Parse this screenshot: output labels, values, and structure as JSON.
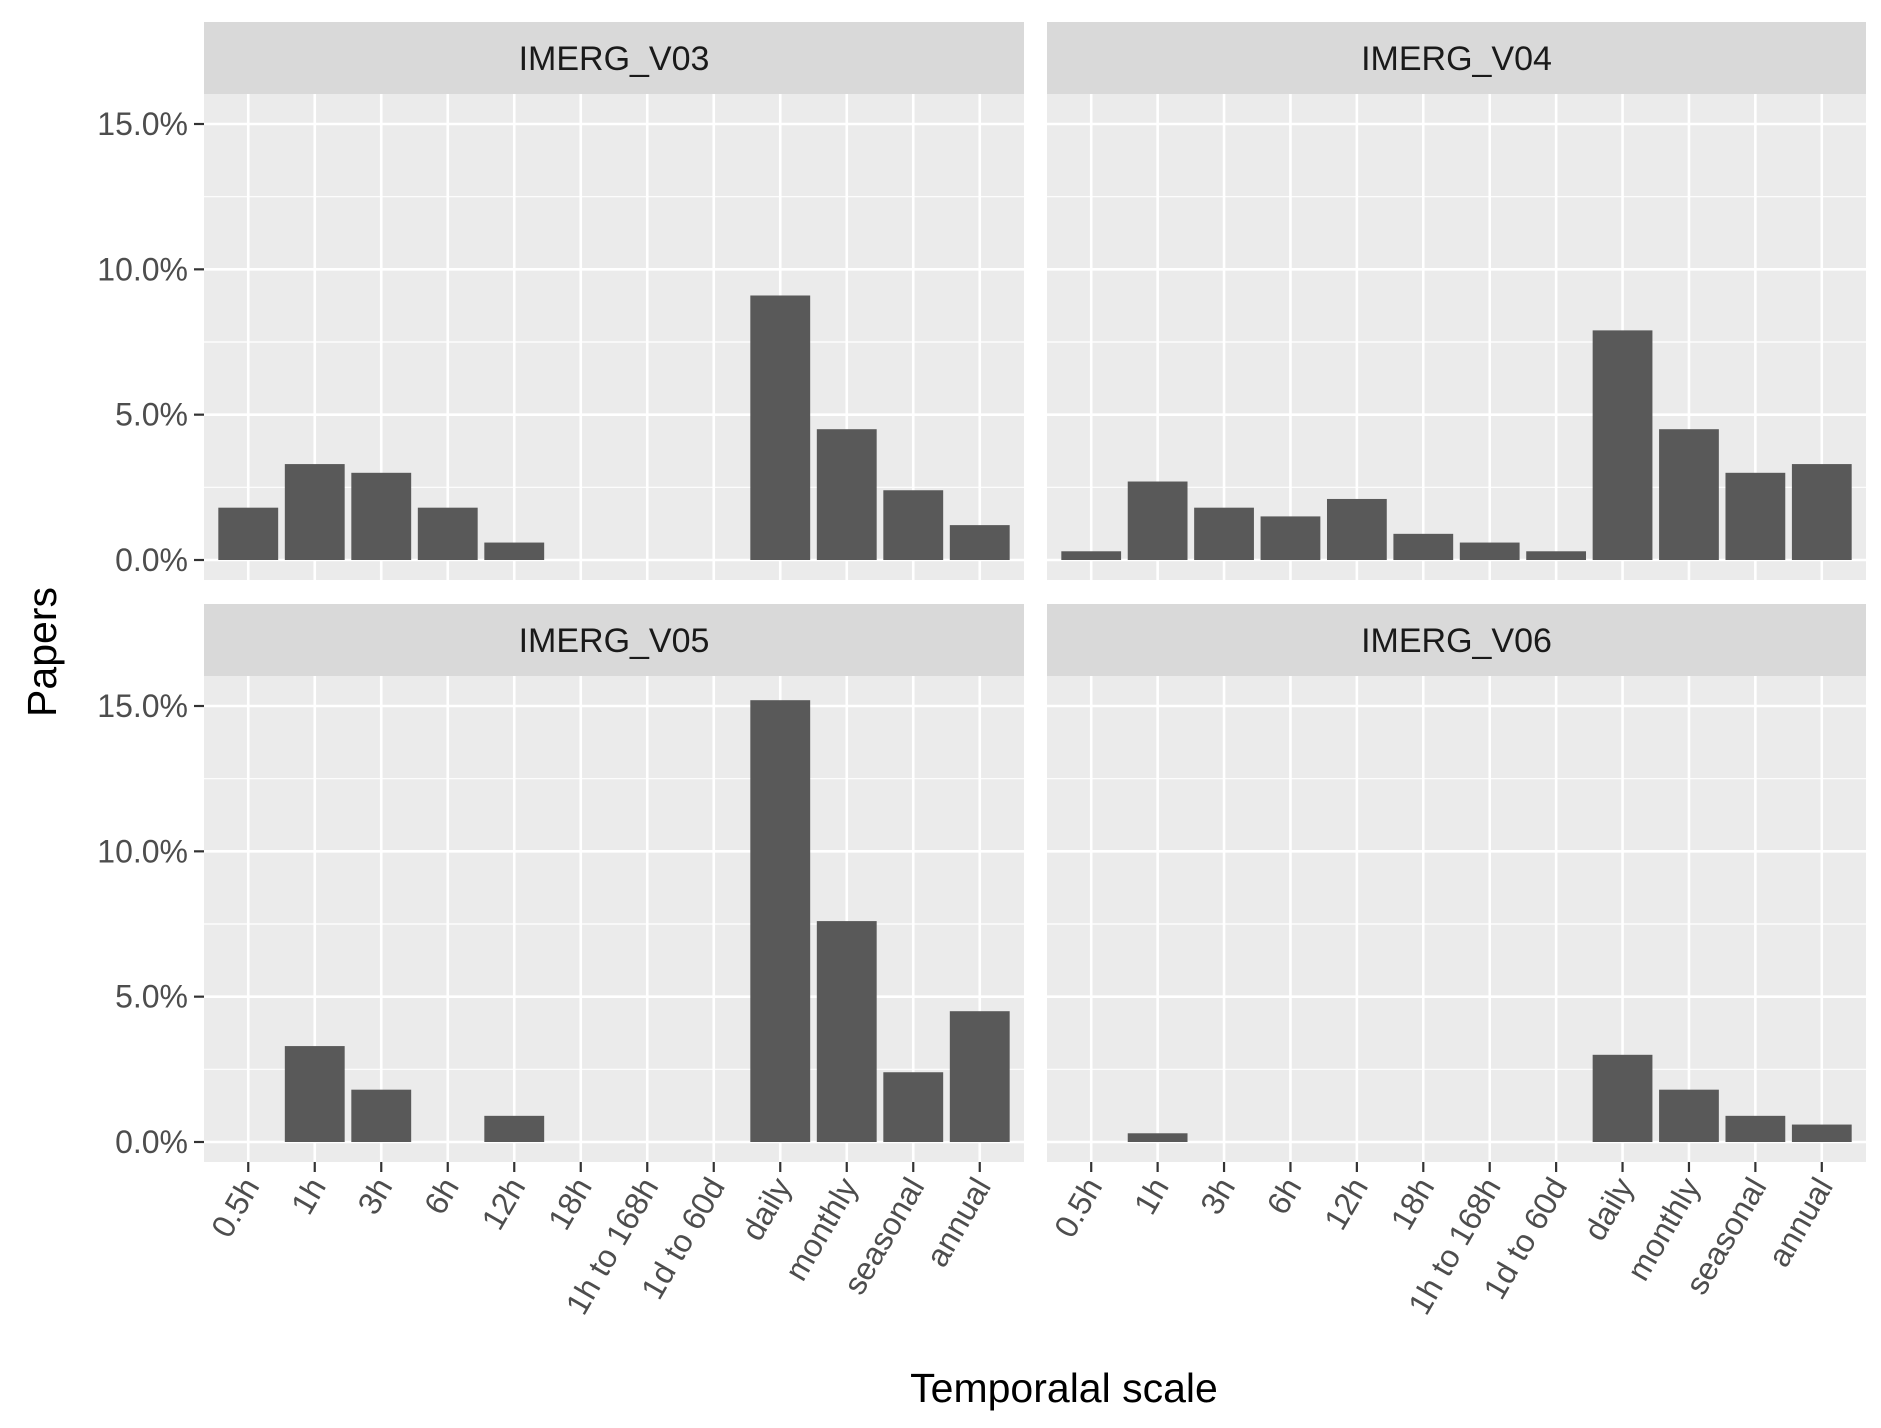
{
  "chart_data": {
    "type": "bar",
    "layout": "facet-grid 2x2",
    "xlabel": "Temporalal scale",
    "ylabel": "Papers",
    "ylim": [
      0,
      16.5
    ],
    "yticks": [
      0,
      5,
      10,
      15
    ],
    "ytick_labels": [
      "0.0%",
      "5.0%",
      "10.0%",
      "15.0%"
    ],
    "categories": [
      "0.5h",
      "1h",
      "3h",
      "6h",
      "12h",
      "18h",
      "1h to 168h",
      "1d to 60d",
      "daily",
      "monthly",
      "seasonal",
      "annual"
    ],
    "grid": true,
    "bar_color": "#595959",
    "panel_background": "#ebebeb",
    "strip_background": "#d9d9d9",
    "facets": [
      {
        "name": "IMERG_V03",
        "values": [
          1.8,
          3.3,
          3.0,
          1.8,
          0.6,
          0,
          0,
          0,
          9.1,
          4.5,
          2.4,
          1.2
        ]
      },
      {
        "name": "IMERG_V04",
        "values": [
          0.3,
          2.7,
          1.8,
          1.5,
          2.1,
          0.9,
          0.6,
          0.3,
          7.9,
          4.5,
          3.0,
          3.3
        ]
      },
      {
        "name": "IMERG_V05",
        "values": [
          0,
          3.3,
          1.8,
          0,
          0.9,
          0,
          0,
          0,
          15.2,
          7.6,
          2.4,
          4.5
        ]
      },
      {
        "name": "IMERG_V06",
        "values": [
          0,
          0.3,
          0,
          0,
          0,
          0,
          0,
          0,
          3.0,
          1.8,
          0.9,
          0.6
        ]
      }
    ]
  }
}
